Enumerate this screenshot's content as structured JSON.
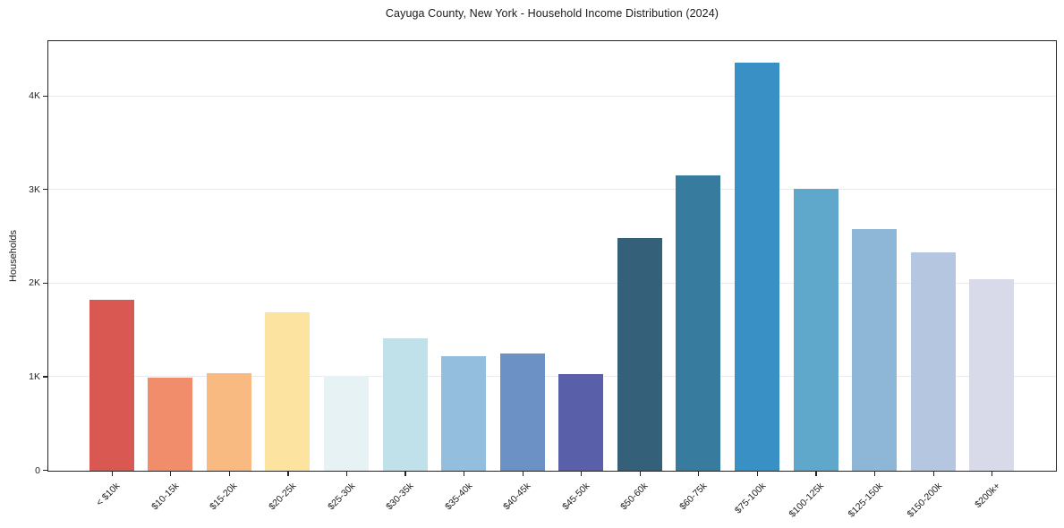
{
  "chart_data": {
    "type": "bar",
    "title": "Cayuga County, New York - Household Income Distribution (2024)",
    "xlabel": "",
    "ylabel": "Households",
    "categories": [
      "< $10k",
      "$10-15k",
      "$15-20k",
      "$20-25k",
      "$25-30k",
      "$30-35k",
      "$35-40k",
      "$40-45k",
      "$45-50k",
      "$50-60k",
      "$60-75k",
      "$75-100k",
      "$100-125k",
      "$125-150k",
      "$150-200k",
      "$200k+"
    ],
    "values": [
      1825,
      995,
      1045,
      1690,
      1015,
      1420,
      1220,
      1250,
      1030,
      2490,
      3160,
      4360,
      3010,
      2580,
      2330,
      2050
    ],
    "bar_colors": [
      "#d95852",
      "#f28d6b",
      "#f8ba80",
      "#fde3a0",
      "#e7f2f4",
      "#c0e0ea",
      "#93bedd",
      "#6c91c5",
      "#5a5fa9",
      "#35607a",
      "#377c9f",
      "#3990c5",
      "#5fa7cb",
      "#8eb7d7",
      "#b5c7e0",
      "#d8daea"
    ],
    "yticks": [
      {
        "value": 0,
        "label": "0"
      },
      {
        "value": 1000,
        "label": "1K"
      },
      {
        "value": 2000,
        "label": "2K"
      },
      {
        "value": 3000,
        "label": "3K"
      },
      {
        "value": 4000,
        "label": "4K"
      }
    ],
    "ylim": [
      0,
      4580
    ],
    "grid": "horizontal",
    "legend": "none",
    "background": "#ffffff",
    "spine_color": "#242424",
    "gridline_color": "#e9e9ee"
  }
}
